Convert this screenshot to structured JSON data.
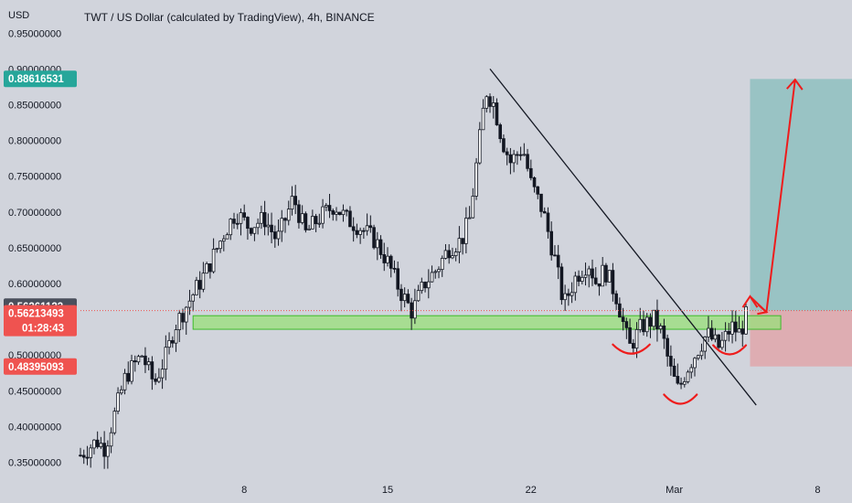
{
  "header": {
    "currency_label": "USD",
    "title": "TWT / US Dollar (calculated by TradingView), 4h, BINANCE"
  },
  "colors": {
    "background": "#d1d4dc",
    "up": "#26a69a",
    "down": "#ef5350",
    "candle": "#131722",
    "target_zone": "#8fc0c0",
    "stop_zone": "#e0a6aa",
    "support_zone": "#98e07a",
    "support_border": "#3dbb2a",
    "annotation": "#ee1c1c",
    "trendline": "#131722",
    "price_line": "#ef5350"
  },
  "price_tags": [
    {
      "label": "0.88616531",
      "color": "#26a69a",
      "value": 0.88616531
    },
    {
      "label": "0.56261123",
      "color": "#4a4f5c",
      "value": 0.56261123
    },
    {
      "label": "0.56213493",
      "color": "#ef5350",
      "value": 0.56213493,
      "sub": "01:28:43"
    },
    {
      "label": "0.48395093",
      "color": "#ef5350",
      "value": 0.48395093
    }
  ],
  "chart_data": {
    "type": "candlestick",
    "title": "TWT / US Dollar (calculated by TradingView), 4h, BINANCE",
    "ylabel": "USD",
    "ylim": [
      0.33,
      0.96
    ],
    "xlim": [
      0,
      43.5
    ],
    "y_ticks": [
      "0.95000000",
      "0.90000000",
      "0.85000000",
      "0.80000000",
      "0.75000000",
      "0.70000000",
      "0.65000000",
      "0.60000000",
      "0.55000000",
      "0.50000000",
      "0.45000000",
      "0.40000000",
      "0.35000000"
    ],
    "x_ticks": [
      {
        "label": "8",
        "day": 8
      },
      {
        "label": "15",
        "day": 15
      },
      {
        "label": "22",
        "day": 22
      },
      {
        "label": "Mar",
        "day": 29
      },
      {
        "label": "8",
        "day": 36
      }
    ],
    "anchors": [
      [
        0.0,
        0.36
      ],
      [
        0.8,
        0.38
      ],
      [
        1.2,
        0.37
      ],
      [
        1.6,
        0.41
      ],
      [
        2.2,
        0.47
      ],
      [
        3.0,
        0.5
      ],
      [
        3.6,
        0.46
      ],
      [
        4.2,
        0.5
      ],
      [
        4.6,
        0.54
      ],
      [
        5.4,
        0.58
      ],
      [
        6.2,
        0.62
      ],
      [
        7.0,
        0.67
      ],
      [
        7.6,
        0.7
      ],
      [
        8.2,
        0.68
      ],
      [
        9.0,
        0.69
      ],
      [
        9.6,
        0.66
      ],
      [
        10.4,
        0.72
      ],
      [
        11.0,
        0.67
      ],
      [
        11.6,
        0.69
      ],
      [
        12.4,
        0.71
      ],
      [
        13.0,
        0.69
      ],
      [
        13.6,
        0.68
      ],
      [
        14.4,
        0.66
      ],
      [
        15.0,
        0.63
      ],
      [
        15.6,
        0.59
      ],
      [
        16.2,
        0.56
      ],
      [
        16.8,
        0.6
      ],
      [
        17.4,
        0.62
      ],
      [
        18.0,
        0.65
      ],
      [
        18.6,
        0.66
      ],
      [
        19.0,
        0.69
      ],
      [
        19.4,
        0.78
      ],
      [
        19.8,
        0.87
      ],
      [
        20.2,
        0.85
      ],
      [
        20.6,
        0.8
      ],
      [
        21.0,
        0.77
      ],
      [
        21.6,
        0.79
      ],
      [
        22.0,
        0.74
      ],
      [
        22.6,
        0.7
      ],
      [
        23.2,
        0.63
      ],
      [
        23.6,
        0.57
      ],
      [
        24.2,
        0.61
      ],
      [
        24.8,
        0.63
      ],
      [
        25.2,
        0.6
      ],
      [
        25.6,
        0.62
      ],
      [
        26.2,
        0.58
      ],
      [
        26.8,
        0.51
      ],
      [
        27.4,
        0.54
      ],
      [
        28.0,
        0.55
      ],
      [
        28.4,
        0.53
      ],
      [
        28.8,
        0.48
      ],
      [
        29.2,
        0.45
      ],
      [
        29.6,
        0.48
      ],
      [
        30.2,
        0.51
      ],
      [
        30.6,
        0.53
      ],
      [
        31.2,
        0.51
      ],
      [
        31.8,
        0.54
      ],
      [
        32.2,
        0.53
      ],
      [
        32.6,
        0.562
      ]
    ],
    "trendline": [
      [
        20.0,
        0.9
      ],
      [
        33.0,
        0.43
      ]
    ],
    "support_zone": {
      "x": [
        5.5,
        34.2
      ],
      "y": [
        0.536,
        0.555
      ]
    },
    "target_zone": {
      "x": [
        32.7,
        40.2
      ],
      "y": [
        0.562,
        0.886
      ]
    },
    "stop_zone": {
      "x": [
        32.7,
        40.2
      ],
      "y": [
        0.484,
        0.562
      ]
    },
    "arrow": [
      [
        32.7,
        0.582
      ],
      [
        33.5,
        0.56
      ],
      [
        34.9,
        0.885
      ]
    ],
    "arcs": [
      {
        "center": [
          26.9,
          0.507
        ],
        "radius": 0.9
      },
      {
        "center": [
          29.3,
          0.437
        ],
        "radius": 0.8
      },
      {
        "center": [
          31.7,
          0.506
        ],
        "radius": 0.8
      }
    ],
    "current_price": 0.56213493
  }
}
